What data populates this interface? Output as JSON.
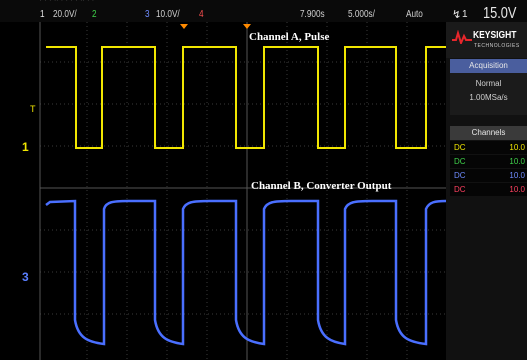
{
  "top_bar": {
    "faint_text": "'  ' ' '' ' ' ' '  '' ' '",
    "ch1_number": "1",
    "ch1_scale": "20.0V/",
    "ch2_number": "2",
    "ch3_number": "3",
    "ch3_scale": "10.0V/",
    "ch4_number": "4",
    "time_delay": "7.900s",
    "time_scale": "5.000s/",
    "trigger_mode": "Auto",
    "trigger_icon": "↯",
    "trigger_channel": "1",
    "trigger_level": "15.0V"
  },
  "markers": {
    "ch1": "1",
    "ch3": "3",
    "trigger_t": "T"
  },
  "labels": {
    "channel_a": "Channel A, Pulse",
    "channel_b": "Channel B, Converter Output"
  },
  "side_panel": {
    "brand_name": "KEYSIGHT",
    "brand_sub": "TECHNOLOGIES",
    "acquisition_title": "Acquisition",
    "acquisition_mode": "Normal",
    "sample_rate": "1.00MSa/s",
    "channels_title": "Channels",
    "channels": [
      {
        "coupling": "DC",
        "value": "10.0",
        "color": "#f1e600"
      },
      {
        "coupling": "DC",
        "value": "10.0",
        "color": "#3fd24a"
      },
      {
        "coupling": "DC",
        "value": "10.0",
        "color": "#6f8cff"
      },
      {
        "coupling": "DC",
        "value": "10.0",
        "color": "#ff4060"
      }
    ]
  },
  "colors": {
    "channel_a_trace": "#f1e600",
    "channel_b_trace": "#4a6fff",
    "grid": "#3a3a3a"
  }
}
